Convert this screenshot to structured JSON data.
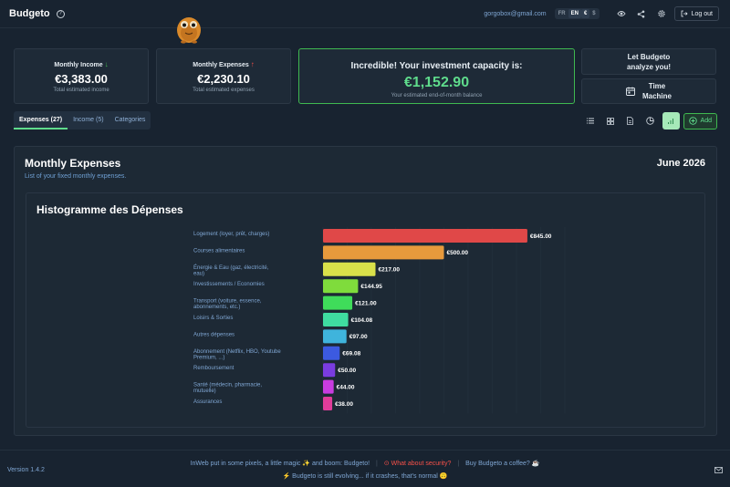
{
  "header": {
    "app_name": "Budgeto",
    "email": "gorgobox@gmail.com",
    "languages": [
      "FR",
      "EN"
    ],
    "active_language": "EN",
    "currencies": [
      "€",
      "$"
    ],
    "logout_label": "Log out"
  },
  "cards": {
    "income": {
      "label": "Monthly Income",
      "amount": "€3,383.00",
      "sub": "Total estimated income"
    },
    "expenses": {
      "label": "Monthly Expenses",
      "amount": "€2,230.10",
      "sub": "Total estimated expenses"
    },
    "investment": {
      "label": "Incredible! Your investment capacity is:",
      "amount": "€1,152.90",
      "sub": "Your estimated end-of-month balance"
    },
    "analyze": {
      "line1": "Let Budgeto",
      "line2": "analyze you!"
    },
    "time_machine": {
      "line1": "Time",
      "line2": "Machine"
    }
  },
  "tabs": [
    {
      "label": "Expenses (27)",
      "active": true
    },
    {
      "label": "Income (5)",
      "active": false
    },
    {
      "label": "Categories",
      "active": false
    }
  ],
  "toolbar": {
    "add_label": "Add"
  },
  "panel": {
    "title": "Monthly Expenses",
    "subtitle": "List of your fixed monthly expenses.",
    "date": "June 2026",
    "chart_title": "Histogramme des Dépenses"
  },
  "chart_data": {
    "type": "bar",
    "orientation": "horizontal",
    "title": "Histogramme des Dépenses",
    "categories": [
      [
        "Logement (loyer, prêt, charges)"
      ],
      [
        "Courses alimentaires"
      ],
      [
        "Énergie & Eau (gaz, électricité,",
        "eau)"
      ],
      [
        "Investissements / Economies"
      ],
      [
        "Transport (voiture, essence,",
        "abonnements, etc.)"
      ],
      [
        "Loisirs & Sorties"
      ],
      [
        "Autres dépenses"
      ],
      [
        "Abonnement (Netflix, HBO, Youtube",
        "Premium, ...)"
      ],
      [
        "Remboursement"
      ],
      [
        "Santé (médecin, pharmacie,",
        "mutuelle)"
      ],
      [
        "Assurances"
      ]
    ],
    "values": [
      845.0,
      500.0,
      217.0,
      144.95,
      121.0,
      104.08,
      97.0,
      69.08,
      50.0,
      44.0,
      38.0
    ],
    "value_labels": [
      "€845.00",
      "€500.00",
      "€217.00",
      "€144.95",
      "€121.00",
      "€104.08",
      "€97.00",
      "€69.08",
      "€50.00",
      "€44.00",
      "€38.00"
    ],
    "colors": [
      "#e04848",
      "#e79a3c",
      "#d9e04a",
      "#7fdc3c",
      "#3fdc5a",
      "#3fdca0",
      "#3fb4dc",
      "#3c5ae0",
      "#7a3ce0",
      "#c83ce0",
      "#e03c9a"
    ],
    "xlim": [
      0,
      1000
    ],
    "grid": true
  },
  "footer": {
    "version": "Version 1.4.2",
    "line1_a": "InWeb put in some pixels, a little magic ✨ and boom: Budgeto!",
    "security": "What about security?",
    "coffee": "Buy Budgeto a coffee? ☕",
    "line2": "Budgeto is still evolving... if it crashes, that's normal 🙃"
  }
}
